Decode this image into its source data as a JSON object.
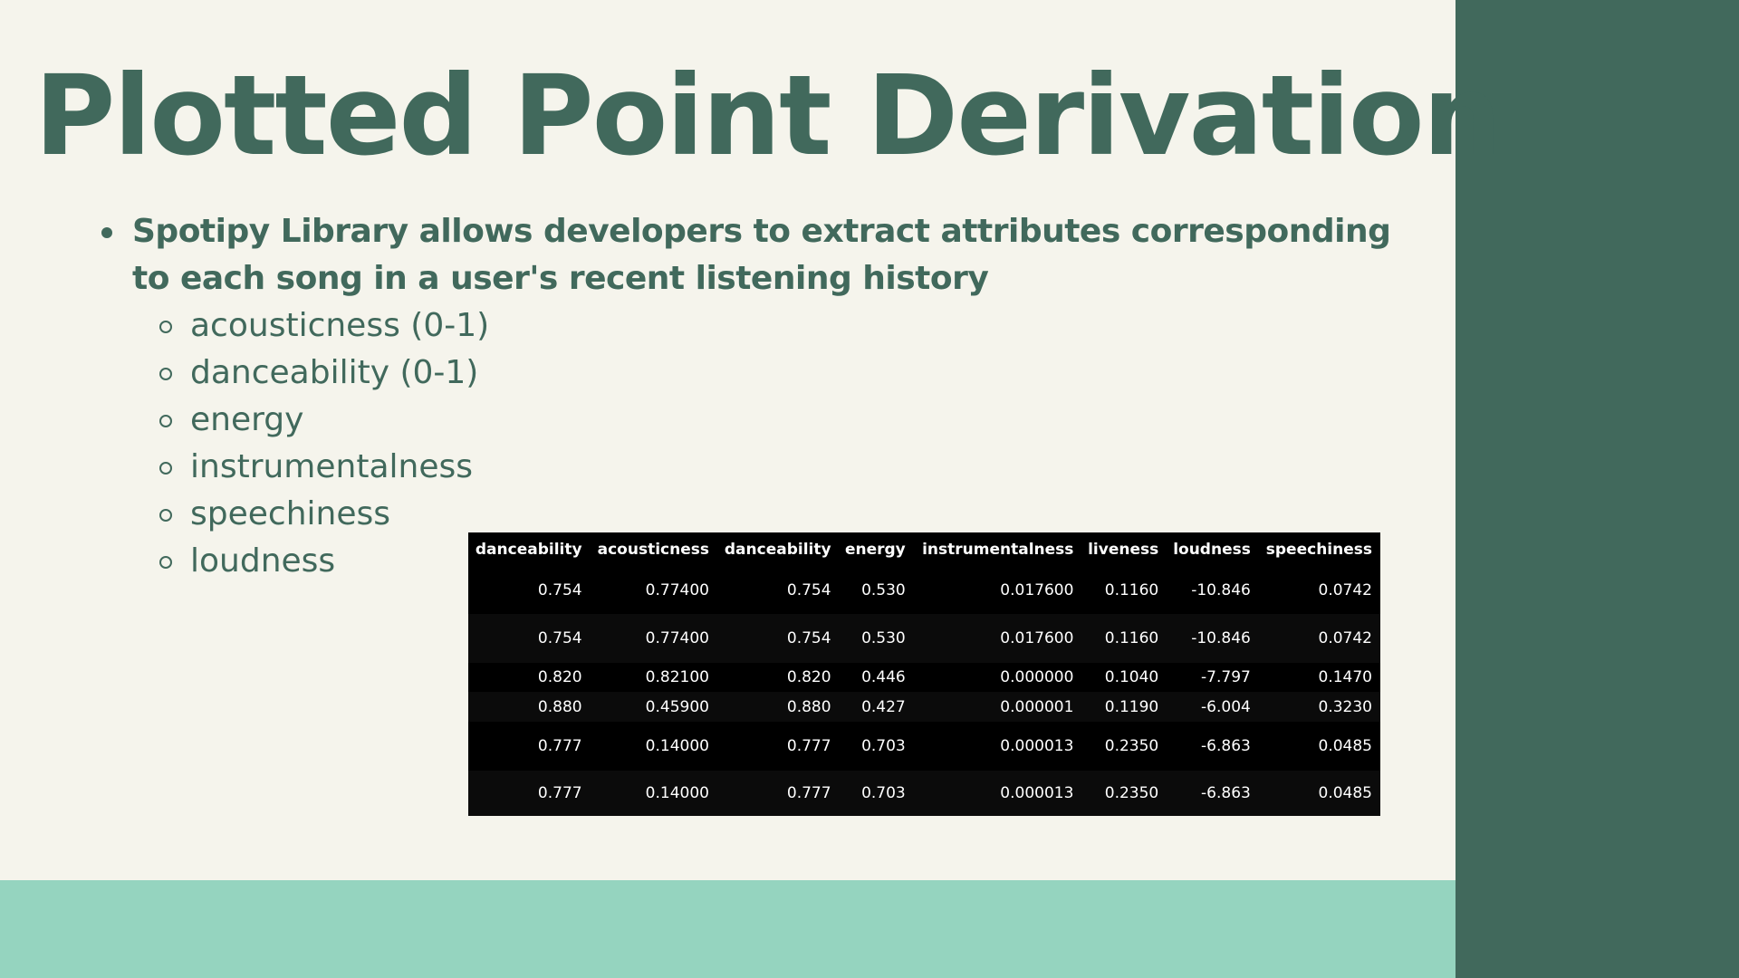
{
  "slide": {
    "title": "Plotted Point Derivation",
    "bullet": "Spotipy Library allows developers to extract attributes corresponding to each song in a user's recent listening history",
    "sub_bullets": [
      "acousticness (0-1)",
      "danceability (0-1)",
      "energy",
      "instrumentalness",
      "speechiness",
      "loudness"
    ]
  },
  "colors": {
    "background": "#f5f4ec",
    "accent_dark": "#41695c",
    "accent_light": "#95d4bf",
    "table_bg": "#000000"
  },
  "table": {
    "headers": [
      "danceability",
      "acousticness",
      "danceability",
      "energy",
      "instrumentalness",
      "liveness",
      "loudness",
      "speechiness"
    ],
    "rows": [
      [
        "0.754",
        "0.77400",
        "0.754",
        "0.530",
        "0.017600",
        "0.1160",
        "-10.846",
        "0.0742"
      ],
      [
        "0.754",
        "0.77400",
        "0.754",
        "0.530",
        "0.017600",
        "0.1160",
        "-10.846",
        "0.0742"
      ],
      [
        "0.820",
        "0.82100",
        "0.820",
        "0.446",
        "0.000000",
        "0.1040",
        "-7.797",
        "0.1470"
      ],
      [
        "0.880",
        "0.45900",
        "0.880",
        "0.427",
        "0.000001",
        "0.1190",
        "-6.004",
        "0.3230"
      ],
      [
        "0.777",
        "0.14000",
        "0.777",
        "0.703",
        "0.000013",
        "0.2350",
        "-6.863",
        "0.0485"
      ],
      [
        "0.777",
        "0.14000",
        "0.777",
        "0.703",
        "0.000013",
        "0.2350",
        "-6.863",
        "0.0485"
      ]
    ]
  }
}
